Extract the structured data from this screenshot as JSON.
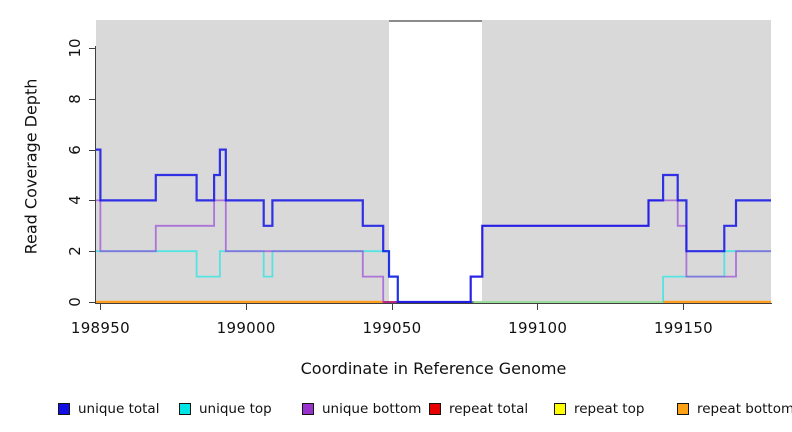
{
  "legend": {
    "items": [
      {
        "label": "unique total",
        "color": "#0F0FE6"
      },
      {
        "label": "unique top",
        "color": "#00E5E5"
      },
      {
        "label": "unique bottom",
        "color": "#9932CC"
      },
      {
        "label": "repeat total",
        "color": "#E60000"
      },
      {
        "label": "repeat top",
        "color": "#FFFF00"
      },
      {
        "label": "repeat bottom",
        "color": "#FFA114"
      }
    ]
  },
  "chart_data": {
    "type": "line",
    "subtype": "step",
    "title": "",
    "xlabel": "Coordinate in Reference Genome",
    "ylabel": "Read Coverage Depth",
    "xlim": [
      198948.5,
      199180
    ],
    "ylim": [
      0,
      11.1
    ],
    "x_ticks": [
      198950,
      199000,
      199050,
      199100,
      199150
    ],
    "x_tick_labels": [
      "198950",
      "199000",
      "199050",
      "199100",
      "199150"
    ],
    "y_ticks": [
      0,
      2,
      4,
      6,
      8,
      10
    ],
    "y_tick_labels": [
      "0",
      "2",
      "4",
      "6",
      "8",
      "10"
    ],
    "grid": false,
    "legend_position": "bottom",
    "plot_bg": "#D9D9D9",
    "gap_band": {
      "from": 199049,
      "to": 199081,
      "color": "#FFFFFF",
      "top_border_color": "#8C8C8C"
    },
    "series": [
      {
        "name": "unique total",
        "stroke": "rgba(18,18,230,0.85)",
        "stroke_width": 2.2,
        "end": 199180,
        "steps": [
          [
            198948.5,
            6
          ],
          [
            198950,
            4
          ],
          [
            198969,
            5
          ],
          [
            198983,
            4
          ],
          [
            198989,
            5
          ],
          [
            198991,
            6
          ],
          [
            198993,
            4
          ],
          [
            199006,
            3
          ],
          [
            199009,
            4
          ],
          [
            199040,
            3
          ],
          [
            199047,
            2
          ],
          [
            199049,
            1
          ],
          [
            199052,
            0
          ],
          [
            199077,
            1
          ],
          [
            199081,
            3
          ],
          [
            199138,
            4
          ],
          [
            199143,
            5
          ],
          [
            199148,
            4
          ],
          [
            199151,
            2
          ],
          [
            199164,
            3
          ],
          [
            199168,
            4
          ]
        ]
      },
      {
        "name": "unique top",
        "stroke": "rgba(0,232,232,0.6)",
        "stroke_width": 1.8,
        "end": 199180,
        "steps": [
          [
            198948.5,
            2
          ],
          [
            198983,
            1
          ],
          [
            198991,
            2
          ],
          [
            199006,
            1
          ],
          [
            199009,
            2
          ],
          [
            199049,
            1
          ],
          [
            199052,
            0
          ],
          [
            199143,
            1
          ],
          [
            199164,
            2
          ]
        ]
      },
      {
        "name": "unique bottom",
        "stroke": "rgba(148,62,216,0.65)",
        "stroke_width": 1.8,
        "end": 199180,
        "steps": [
          [
            198948.5,
            4
          ],
          [
            198950,
            2
          ],
          [
            198969,
            3
          ],
          [
            198989,
            4
          ],
          [
            198993,
            2
          ],
          [
            199040,
            1
          ],
          [
            199047,
            0
          ],
          [
            199077,
            1
          ],
          [
            199081,
            3
          ],
          [
            199138,
            4
          ],
          [
            199148,
            3
          ],
          [
            199151,
            1
          ],
          [
            199168,
            2
          ]
        ]
      },
      {
        "name": "repeat total",
        "stroke": "#DE1212",
        "stroke_width": 2,
        "end": 199180,
        "steps": [
          [
            198948.5,
            0
          ]
        ]
      },
      {
        "name": "repeat top",
        "stroke": "#FFFF00",
        "stroke_width": 1.8,
        "end": 199180,
        "steps": [
          [
            198948.5,
            0
          ]
        ]
      },
      {
        "name": "repeat bottom",
        "stroke": "#FF9D20",
        "stroke_width": 2.4,
        "value": 0,
        "segments": [
          [
            198948.5,
            199047
          ],
          [
            199143,
            199180
          ]
        ]
      }
    ],
    "overlays": [
      {
        "name": "baseline-blend",
        "stroke": "#9BDC9B",
        "stroke_width": 2,
        "value": 0,
        "segments": [
          [
            199078,
            199143
          ]
        ]
      }
    ],
    "render_order": [
      "repeat top",
      "repeat total",
      "repeat bottom",
      "unique top",
      "unique bottom",
      "baseline-blend",
      "unique total"
    ]
  }
}
